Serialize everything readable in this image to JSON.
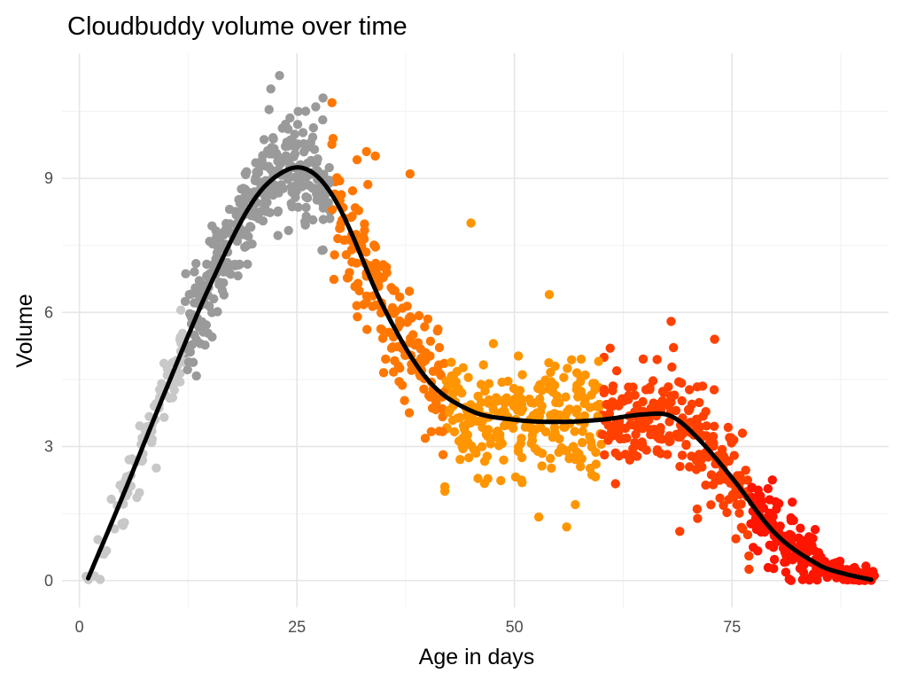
{
  "chart_data": {
    "type": "scatter",
    "title": "Cloudbuddy volume over time",
    "xlabel": "Age in days",
    "ylabel": "Volume",
    "xlim": [
      -2,
      93
    ],
    "ylim": [
      -0.6,
      11.8
    ],
    "x_ticks": [
      0,
      25,
      50,
      75
    ],
    "y_ticks": [
      0,
      3,
      6,
      9
    ],
    "grid": true,
    "legend": "none",
    "colors": {
      "phase_1": "#c8c8c8",
      "phase_2": "#9a9a9a",
      "phase_3": "#ff7700",
      "phase_4": "#ff9500",
      "phase_5": "#ff4000",
      "phase_6": "#ff1500",
      "trend": "#000000"
    },
    "trend": {
      "x": [
        1,
        5,
        10,
        15,
        20,
        24,
        27,
        30,
        35,
        40,
        45,
        50,
        55,
        60,
        65,
        68,
        71,
        75,
        80,
        85,
        88,
        91
      ],
      "y": [
        0.05,
        1.9,
        4.3,
        6.6,
        8.5,
        9.2,
        9.1,
        8.3,
        6.1,
        4.5,
        3.8,
        3.6,
        3.55,
        3.6,
        3.72,
        3.68,
        3.2,
        2.3,
        1.05,
        0.35,
        0.15,
        0.02
      ]
    },
    "points_summary": {
      "x_range": [
        1,
        91
      ],
      "y_range": [
        0,
        11.3
      ],
      "approx_count": 1150
    },
    "outliers": {
      "x": [
        23,
        22,
        26,
        28,
        38,
        45,
        33,
        34,
        54,
        61,
        68,
        73,
        69,
        42,
        42,
        56,
        57,
        71
      ],
      "y": [
        11.3,
        11.0,
        10.5,
        10.8,
        9.1,
        8.0,
        9.6,
        9.5,
        6.4,
        5.2,
        5.8,
        5.4,
        1.1,
        2.1,
        2.0,
        1.2,
        1.7,
        1.6
      ]
    }
  }
}
